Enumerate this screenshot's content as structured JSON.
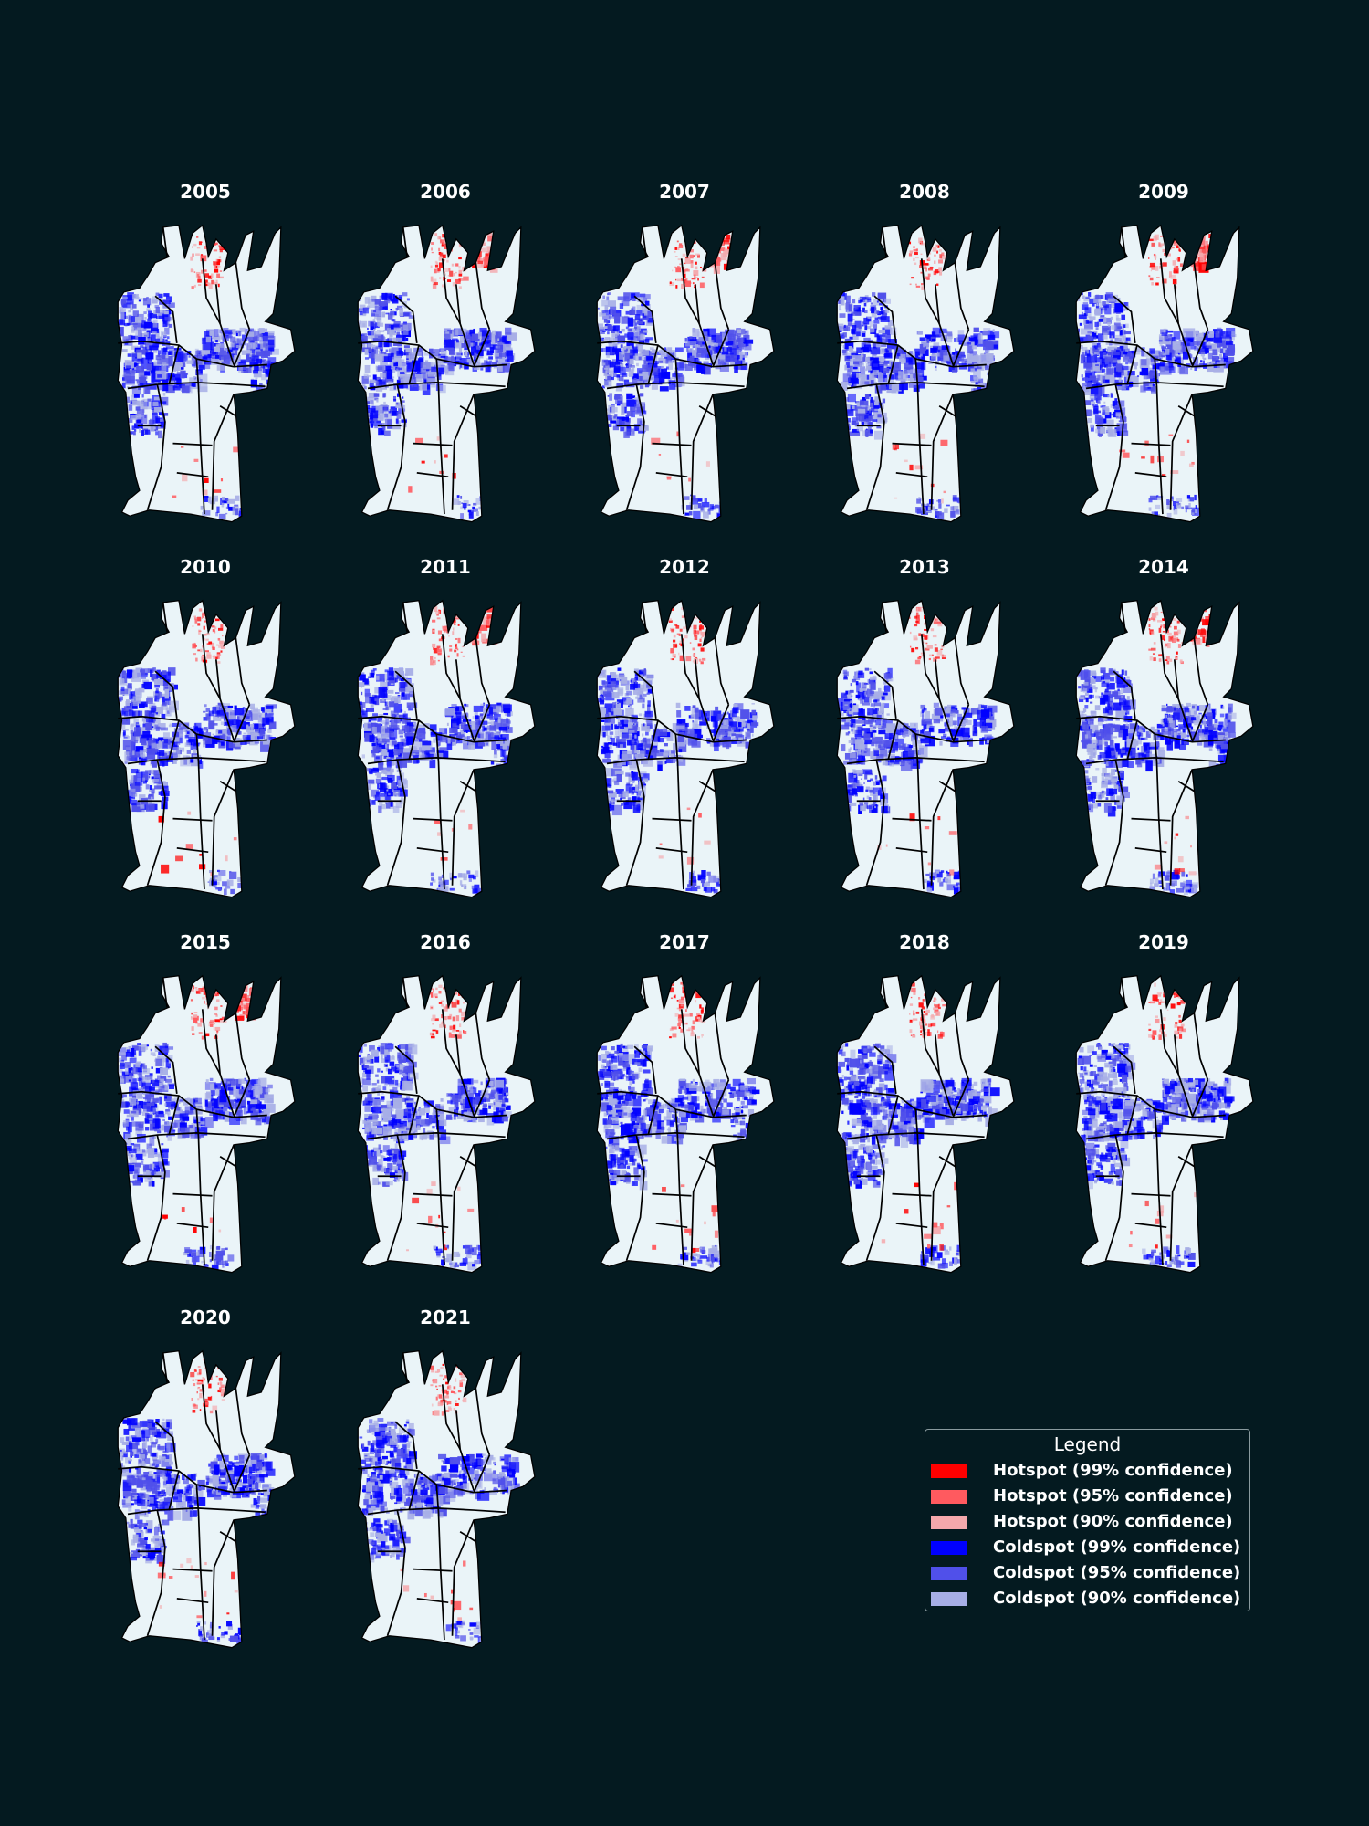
{
  "panels": [
    {
      "year": "2005"
    },
    {
      "year": "2006"
    },
    {
      "year": "2007"
    },
    {
      "year": "2008"
    },
    {
      "year": "2009"
    },
    {
      "year": "2010"
    },
    {
      "year": "2011"
    },
    {
      "year": "2012"
    },
    {
      "year": "2013"
    },
    {
      "year": "2014"
    },
    {
      "year": "2015"
    },
    {
      "year": "2016"
    },
    {
      "year": "2017"
    },
    {
      "year": "2018"
    },
    {
      "year": "2019"
    },
    {
      "year": "2020"
    },
    {
      "year": "2021"
    }
  ],
  "legend": {
    "title": "Legend",
    "entries": [
      {
        "label": "Hotspot (99% confidence)",
        "color": "#ff0000"
      },
      {
        "label": "Hotspot (95% confidence)",
        "color": "#ff5a5f"
      },
      {
        "label": "Hotspot (90% confidence)",
        "color": "#f4a8ac"
      },
      {
        "label": "Coldspot (99% confidence)",
        "color": "#0000ff"
      },
      {
        "label": "Coldspot (95% confidence)",
        "color": "#5050ea"
      },
      {
        "label": "Coldspot (90% confidence)",
        "color": "#a7aee6"
      }
    ]
  },
  "colors": {
    "background": "#041a20",
    "base_fill": "#eaf4f8",
    "boundary": "#000000"
  }
}
